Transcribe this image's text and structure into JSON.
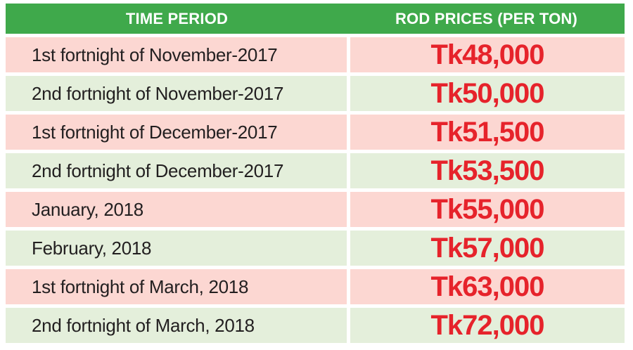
{
  "table": {
    "header": {
      "time_period": "TIME PERIOD",
      "rod_prices": "ROD PRICES (PER TON)"
    },
    "rows": [
      {
        "period": "1st fortnight of November-2017",
        "price": "Tk48,000"
      },
      {
        "period": "2nd fortnight of November-2017",
        "price": "Tk50,000"
      },
      {
        "period": "1st fortnight of December-2017",
        "price": "Tk51,500"
      },
      {
        "period": "2nd fortnight of December-2017",
        "price": "Tk53,500"
      },
      {
        "period": "January, 2018",
        "price": "Tk55,000"
      },
      {
        "period": "February, 2018",
        "price": "Tk57,000"
      },
      {
        "period": "1st fortnight of March, 2018",
        "price": "Tk63,000"
      },
      {
        "period": "2nd fortnight of March, 2018",
        "price": "Tk72,000"
      }
    ],
    "colors": {
      "header_bg": "#3FA94B",
      "header_text": "#FFFFFF",
      "row_pink_bg": "#FCD7D2",
      "row_green_bg": "#E4EFDB",
      "price_text": "#E6232B",
      "period_text": "#221F20",
      "gutter": "#FFFFFF"
    }
  },
  "chart_data": {
    "type": "table",
    "title": "",
    "columns": [
      "TIME PERIOD",
      "ROD PRICES (PER TON)"
    ],
    "rows": [
      [
        "1st fortnight of November-2017",
        "Tk48,000"
      ],
      [
        "2nd fortnight of November-2017",
        "Tk50,000"
      ],
      [
        "1st fortnight of December-2017",
        "Tk51,500"
      ],
      [
        "2nd fortnight of December-2017",
        "Tk53,500"
      ],
      [
        "January, 2018",
        "Tk55,000"
      ],
      [
        "February, 2018",
        "Tk57,000"
      ],
      [
        "1st fortnight of March, 2018",
        "Tk63,000"
      ],
      [
        "2nd fortnight of March, 2018",
        "Tk72,000"
      ]
    ],
    "values_numeric_tk_per_ton": [
      48000,
      50000,
      51500,
      53500,
      55000,
      57000,
      63000,
      72000
    ],
    "layout": {
      "header_style": "solid green bar, white bold centered text",
      "row_style": "alternating pink and light-green bands separated by white gutters",
      "price_style": "bold red, centered"
    }
  }
}
